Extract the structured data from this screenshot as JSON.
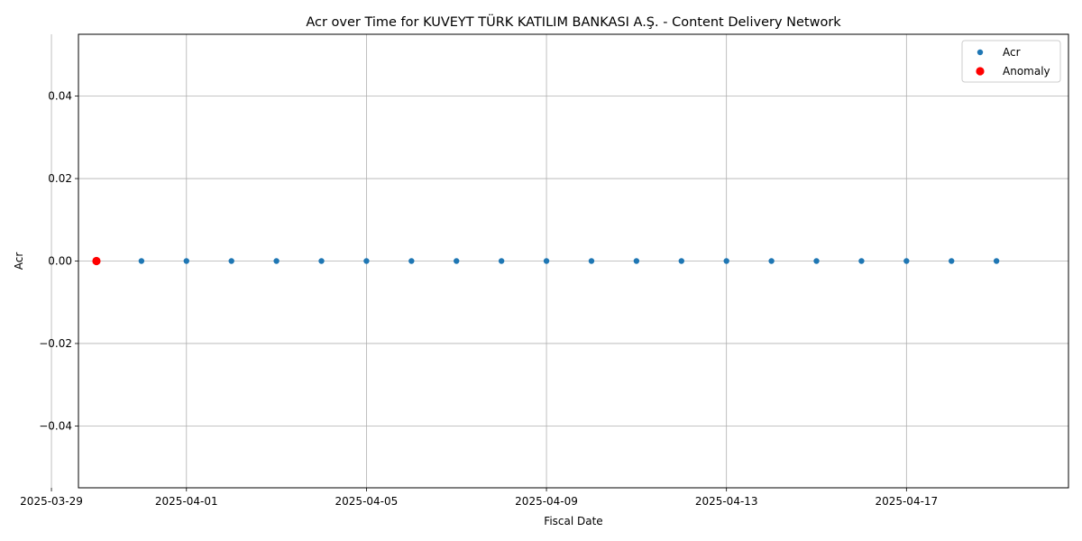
{
  "chart_data": {
    "type": "scatter",
    "title": "Acr over Time for KUVEYT TÜRK KATILIM BANKASI A.Ş. - Content Delivery Network",
    "xlabel": "Fiscal Date",
    "ylabel": "Acr",
    "xlim": [
      "2025-03-29",
      "2025-04-20"
    ],
    "ylim": [
      -0.055,
      0.055
    ],
    "x_ticks": [
      "2025-03-29",
      "2025-04-01",
      "2025-04-05",
      "2025-04-09",
      "2025-04-13",
      "2025-04-17"
    ],
    "y_ticks": [
      -0.04,
      -0.02,
      0.0,
      0.02,
      0.04
    ],
    "y_tick_labels": [
      "−0.04",
      "−0.02",
      "0.00",
      "0.02",
      "0.04"
    ],
    "grid": true,
    "legend_position": "top-right",
    "series": [
      {
        "name": "Acr",
        "color": "#1f77b4",
        "x": [
          "2025-03-30",
          "2025-03-31",
          "2025-04-01",
          "2025-04-02",
          "2025-04-03",
          "2025-04-04",
          "2025-04-05",
          "2025-04-06",
          "2025-04-07",
          "2025-04-08",
          "2025-04-09",
          "2025-04-10",
          "2025-04-11",
          "2025-04-12",
          "2025-04-13",
          "2025-04-14",
          "2025-04-15",
          "2025-04-16",
          "2025-04-17",
          "2025-04-18",
          "2025-04-19"
        ],
        "y": [
          0,
          0,
          0,
          0,
          0,
          0,
          0,
          0,
          0,
          0,
          0,
          0,
          0,
          0,
          0,
          0,
          0,
          0,
          0,
          0,
          0
        ]
      },
      {
        "name": "Anomaly",
        "color": "#ff0000",
        "x": [
          "2025-03-30"
        ],
        "y": [
          0
        ]
      }
    ]
  }
}
